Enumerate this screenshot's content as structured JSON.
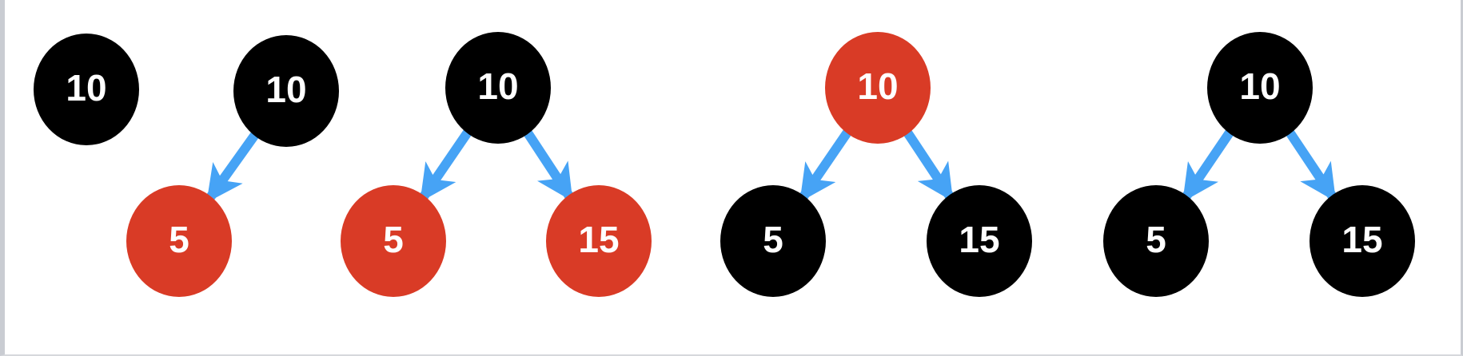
{
  "colors": {
    "red": "#d93b26",
    "black": "#000000",
    "edge": "#46a3f5",
    "label": "#ffffff",
    "frame_border": "#c9ccd2"
  },
  "trees": [
    {
      "id": "tree-1",
      "nodes": [
        {
          "id": "t1-n10",
          "label": "10",
          "color": "black"
        }
      ],
      "edges": []
    },
    {
      "id": "tree-2",
      "nodes": [
        {
          "id": "t2-n10",
          "label": "10",
          "color": "black"
        },
        {
          "id": "t2-n5",
          "label": "5",
          "color": "red"
        }
      ],
      "edges": [
        {
          "from": "t2-n10",
          "to": "t2-n5"
        }
      ]
    },
    {
      "id": "tree-3",
      "nodes": [
        {
          "id": "t3-n10",
          "label": "10",
          "color": "black"
        },
        {
          "id": "t3-n5",
          "label": "5",
          "color": "red"
        },
        {
          "id": "t3-n15",
          "label": "15",
          "color": "red"
        }
      ],
      "edges": [
        {
          "from": "t3-n10",
          "to": "t3-n5"
        },
        {
          "from": "t3-n10",
          "to": "t3-n15"
        }
      ]
    },
    {
      "id": "tree-4",
      "nodes": [
        {
          "id": "t4-n10",
          "label": "10",
          "color": "red"
        },
        {
          "id": "t4-n5",
          "label": "5",
          "color": "black"
        },
        {
          "id": "t4-n15",
          "label": "15",
          "color": "black"
        }
      ],
      "edges": [
        {
          "from": "t4-n10",
          "to": "t4-n5"
        },
        {
          "from": "t4-n10",
          "to": "t4-n15"
        }
      ]
    },
    {
      "id": "tree-5",
      "nodes": [
        {
          "id": "t5-n10",
          "label": "10",
          "color": "black"
        },
        {
          "id": "t5-n5",
          "label": "5",
          "color": "black"
        },
        {
          "id": "t5-n15",
          "label": "15",
          "color": "black"
        }
      ],
      "edges": [
        {
          "from": "t5-n10",
          "to": "t5-n5"
        },
        {
          "from": "t5-n10",
          "to": "t5-n15"
        }
      ]
    }
  ]
}
